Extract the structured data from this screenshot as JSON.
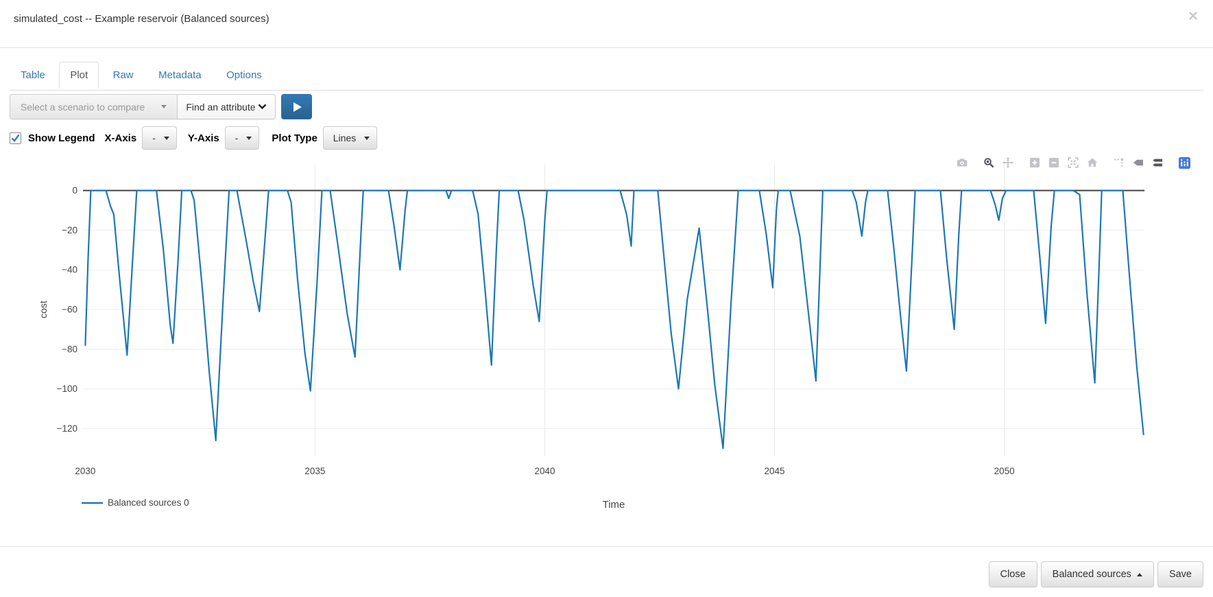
{
  "colors": {
    "link_blue": "#337ab7",
    "primary_blue": "#337ab7",
    "check_blue": "#3779c4",
    "logo_blue": "#447adb",
    "line_blue": "#1f77b4"
  },
  "header": {
    "title": "simulated_cost -- Example reservoir (Balanced sources)",
    "close_label": "×"
  },
  "tabs": [
    {
      "label": "Table",
      "active": false
    },
    {
      "label": "Plot",
      "active": true
    },
    {
      "label": "Raw",
      "active": false
    },
    {
      "label": "Metadata",
      "active": false
    },
    {
      "label": "Options",
      "active": false
    }
  ],
  "controls": {
    "scenario_select": {
      "label": "Select a scenario to compare"
    },
    "attribute_select": {
      "label": "Find an attribute"
    },
    "play_button": {
      "icon": "play"
    },
    "show_legend": {
      "label": "Show Legend",
      "checked": true
    },
    "x_axis": {
      "label": "X-Axis",
      "value": "-"
    },
    "y_axis": {
      "label": "Y-Axis",
      "value": "-"
    },
    "plot_type": {
      "label": "Plot Type",
      "value": "Lines"
    }
  },
  "modebar": {
    "icons": [
      {
        "name": "camera",
        "state": "inactive"
      },
      {
        "name": "zoom",
        "state": "active"
      },
      {
        "name": "pan",
        "state": "inactive"
      },
      {
        "name": "zoom-in",
        "state": "inactive"
      },
      {
        "name": "zoom-out",
        "state": "inactive"
      },
      {
        "name": "autoscale",
        "state": "inactive"
      },
      {
        "name": "reset-axes",
        "state": "inactive"
      },
      {
        "name": "spikelines",
        "state": "inactive"
      },
      {
        "name": "hover-closest",
        "state": "semi"
      },
      {
        "name": "hover-compare",
        "state": "active"
      },
      {
        "name": "plotly-logo",
        "state": "logo"
      }
    ]
  },
  "chart_data": {
    "type": "line",
    "title": "",
    "xlabel": "Time",
    "ylabel": "cost",
    "x_range": [
      2029.95,
      2053.05
    ],
    "y_range": [
      -134,
      13
    ],
    "x_ticks": [
      2030,
      2035,
      2040,
      2045,
      2050
    ],
    "y_ticks": [
      0,
      -20,
      -40,
      -60,
      -80,
      -100,
      -120
    ],
    "grid": true,
    "legend_position": "bottom-left",
    "series": [
      {
        "name": "Balanced sources 0",
        "color": "#1f77b4",
        "points": [
          [
            2030.0,
            -78
          ],
          [
            2030.06,
            -35
          ],
          [
            2030.12,
            0
          ],
          [
            2030.45,
            0
          ],
          [
            2030.55,
            -8
          ],
          [
            2030.62,
            -12
          ],
          [
            2030.75,
            -45
          ],
          [
            2030.91,
            -83
          ],
          [
            2031.03,
            -35
          ],
          [
            2031.12,
            0
          ],
          [
            2031.55,
            0
          ],
          [
            2031.7,
            -30
          ],
          [
            2031.85,
            -68
          ],
          [
            2031.91,
            -77
          ],
          [
            2032.02,
            -35
          ],
          [
            2032.1,
            0
          ],
          [
            2032.3,
            0
          ],
          [
            2032.37,
            -5
          ],
          [
            2032.55,
            -50
          ],
          [
            2032.7,
            -92
          ],
          [
            2032.84,
            -126
          ],
          [
            2033.0,
            -55
          ],
          [
            2033.13,
            0
          ],
          [
            2033.3,
            0
          ],
          [
            2033.5,
            -25
          ],
          [
            2033.65,
            -45
          ],
          [
            2033.79,
            -61
          ],
          [
            2033.9,
            -28
          ],
          [
            2033.99,
            0
          ],
          [
            2034.4,
            0
          ],
          [
            2034.48,
            -6
          ],
          [
            2034.62,
            -45
          ],
          [
            2034.78,
            -82
          ],
          [
            2034.9,
            -101
          ],
          [
            2035.04,
            -48
          ],
          [
            2035.15,
            0
          ],
          [
            2035.33,
            0
          ],
          [
            2035.5,
            -28
          ],
          [
            2035.7,
            -62
          ],
          [
            2035.87,
            -84
          ],
          [
            2036.0,
            -22
          ],
          [
            2036.05,
            0
          ],
          [
            2036.6,
            0
          ],
          [
            2036.72,
            -18
          ],
          [
            2036.85,
            -40
          ],
          [
            2036.96,
            -10
          ],
          [
            2037.01,
            0
          ],
          [
            2037.85,
            0
          ],
          [
            2037.91,
            -4
          ],
          [
            2037.97,
            0
          ],
          [
            2038.43,
            0
          ],
          [
            2038.55,
            -12
          ],
          [
            2038.7,
            -50
          ],
          [
            2038.84,
            -88
          ],
          [
            2038.95,
            -28
          ],
          [
            2039.01,
            0
          ],
          [
            2039.42,
            0
          ],
          [
            2039.55,
            -15
          ],
          [
            2039.75,
            -48
          ],
          [
            2039.88,
            -66
          ],
          [
            2040.0,
            -15
          ],
          [
            2040.05,
            0
          ],
          [
            2041.64,
            0
          ],
          [
            2041.78,
            -12
          ],
          [
            2041.88,
            -28
          ],
          [
            2041.94,
            0
          ],
          [
            2042.46,
            0
          ],
          [
            2042.6,
            -35
          ],
          [
            2042.75,
            -72
          ],
          [
            2042.91,
            -100
          ],
          [
            2043.1,
            -55
          ],
          [
            2043.36,
            -19
          ],
          [
            2043.55,
            -62
          ],
          [
            2043.7,
            -98
          ],
          [
            2043.88,
            -130
          ],
          [
            2044.05,
            -58
          ],
          [
            2044.21,
            0
          ],
          [
            2044.67,
            0
          ],
          [
            2044.82,
            -22
          ],
          [
            2044.96,
            -49
          ],
          [
            2045.04,
            -10
          ],
          [
            2045.08,
            0
          ],
          [
            2045.34,
            0
          ],
          [
            2045.55,
            -23
          ],
          [
            2045.72,
            -58
          ],
          [
            2045.9,
            -96
          ],
          [
            2046.0,
            -32
          ],
          [
            2046.05,
            0
          ],
          [
            2046.69,
            0
          ],
          [
            2046.78,
            -6
          ],
          [
            2046.9,
            -23
          ],
          [
            2046.98,
            -6
          ],
          [
            2047.03,
            0
          ],
          [
            2047.46,
            0
          ],
          [
            2047.6,
            -30
          ],
          [
            2047.75,
            -65
          ],
          [
            2047.87,
            -91
          ],
          [
            2048.0,
            -30
          ],
          [
            2048.06,
            0
          ],
          [
            2048.61,
            0
          ],
          [
            2048.75,
            -35
          ],
          [
            2048.91,
            -70
          ],
          [
            2049.01,
            -22
          ],
          [
            2049.07,
            0
          ],
          [
            2049.7,
            0
          ],
          [
            2049.8,
            -7
          ],
          [
            2049.88,
            -15
          ],
          [
            2049.96,
            -4
          ],
          [
            2050.04,
            0
          ],
          [
            2050.64,
            0
          ],
          [
            2050.76,
            -30
          ],
          [
            2050.9,
            -67
          ],
          [
            2051.02,
            -18
          ],
          [
            2051.09,
            0
          ],
          [
            2051.5,
            0
          ],
          [
            2051.64,
            -2
          ],
          [
            2051.8,
            -52
          ],
          [
            2051.97,
            -97
          ],
          [
            2052.06,
            -40
          ],
          [
            2052.12,
            0
          ],
          [
            2052.58,
            0
          ],
          [
            2052.72,
            -42
          ],
          [
            2052.88,
            -88
          ],
          [
            2053.03,
            -123
          ]
        ]
      }
    ]
  },
  "footer": {
    "close_label": "Close",
    "scenario_label": "Balanced sources",
    "save_label": "Save"
  }
}
